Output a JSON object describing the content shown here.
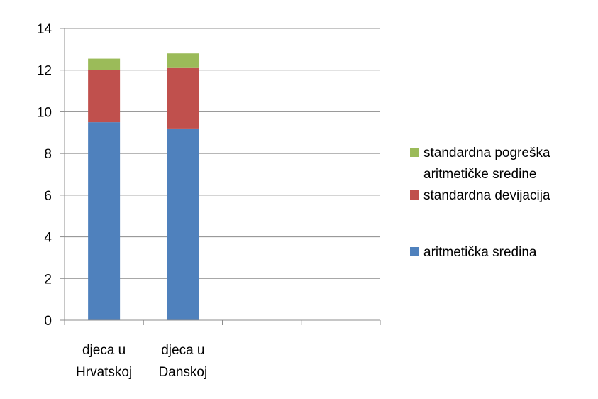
{
  "chart_data": {
    "type": "bar",
    "stacked": true,
    "title": "",
    "xlabel": "",
    "ylabel": "",
    "ylim": [
      0,
      14
    ],
    "yticks": [
      0,
      2,
      4,
      6,
      8,
      10,
      12,
      14
    ],
    "grid": "horizontal",
    "legend_position": "right",
    "categories": [
      [
        "djeca u",
        "Hrvatskoj"
      ],
      [
        "djeca u",
        "Danskoj"
      ],
      [
        "",
        ""
      ],
      [
        "",
        ""
      ]
    ],
    "series": [
      {
        "name": "aritmetička sredina",
        "color": "#4f81bd",
        "values": [
          9.5,
          9.2,
          null,
          null
        ]
      },
      {
        "name": "standardna devijacija",
        "color": "#c0504d",
        "values": [
          2.5,
          2.9,
          null,
          null
        ]
      },
      {
        "name": [
          "standardna pogreška",
          "aritmetičke sredine"
        ],
        "color": "#9bbb59",
        "values": [
          0.55,
          0.7,
          null,
          null
        ]
      }
    ],
    "legend_order": [
      2,
      1,
      0
    ]
  }
}
